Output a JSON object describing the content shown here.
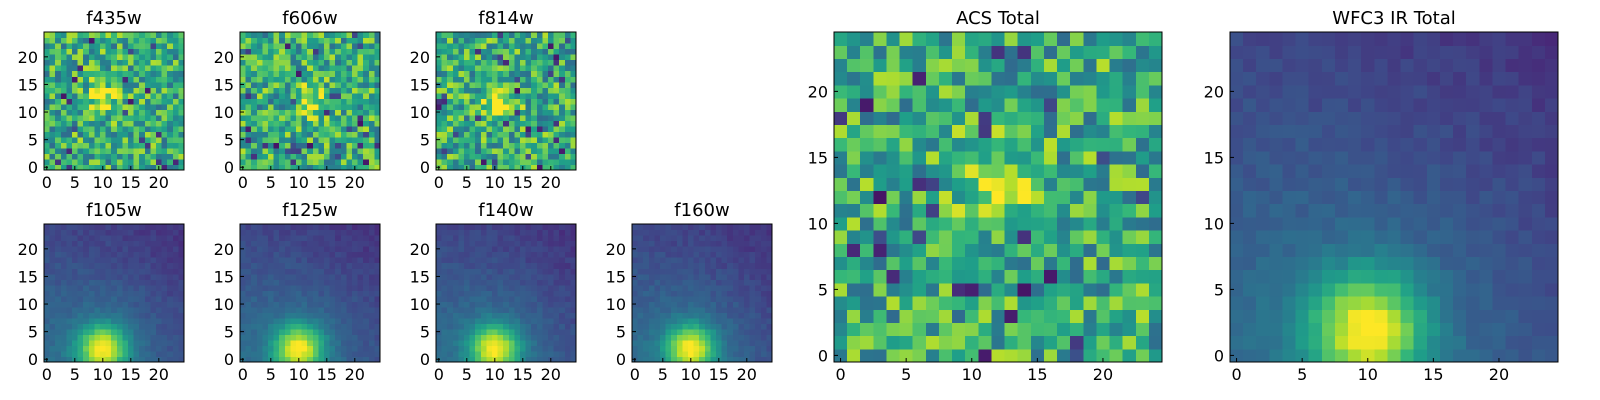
{
  "chart_data": [
    {
      "type": "heatmap",
      "title": "f435w",
      "xlim": [
        0,
        24
      ],
      "ylim": [
        0,
        24
      ],
      "xticks": [
        0,
        5,
        10,
        15,
        20
      ],
      "yticks": [
        0,
        5,
        10,
        15,
        20
      ],
      "colormap": "viridis",
      "texture": "noisy",
      "peak": {
        "x": 10,
        "y": 13
      }
    },
    {
      "type": "heatmap",
      "title": "f606w",
      "xlim": [
        0,
        24
      ],
      "ylim": [
        0,
        24
      ],
      "xticks": [
        0,
        5,
        10,
        15,
        20
      ],
      "yticks": [
        0,
        5,
        10,
        15,
        20
      ],
      "colormap": "viridis",
      "texture": "noisy",
      "peak": {
        "x": 12,
        "y": 12
      }
    },
    {
      "type": "heatmap",
      "title": "f814w",
      "xlim": [
        0,
        24
      ],
      "ylim": [
        0,
        24
      ],
      "xticks": [
        0,
        5,
        10,
        15,
        20
      ],
      "yticks": [
        0,
        5,
        10,
        15,
        20
      ],
      "colormap": "viridis",
      "texture": "noisy",
      "peak": {
        "x": 11,
        "y": 12
      }
    },
    {
      "type": "heatmap",
      "title": "f105w",
      "xlim": [
        0,
        24
      ],
      "ylim": [
        0,
        24
      ],
      "xticks": [
        0,
        5,
        10,
        15,
        20
      ],
      "yticks": [
        0,
        5,
        10,
        15,
        20
      ],
      "colormap": "viridis",
      "texture": "smooth",
      "peak": {
        "x": 10,
        "y": 2
      }
    },
    {
      "type": "heatmap",
      "title": "f125w",
      "xlim": [
        0,
        24
      ],
      "ylim": [
        0,
        24
      ],
      "xticks": [
        0,
        5,
        10,
        15,
        20
      ],
      "yticks": [
        0,
        5,
        10,
        15,
        20
      ],
      "colormap": "viridis",
      "texture": "smooth",
      "peak": {
        "x": 10,
        "y": 2
      }
    },
    {
      "type": "heatmap",
      "title": "f140w",
      "xlim": [
        0,
        24
      ],
      "ylim": [
        0,
        24
      ],
      "xticks": [
        0,
        5,
        10,
        15,
        20
      ],
      "yticks": [
        0,
        5,
        10,
        15,
        20
      ],
      "colormap": "viridis",
      "texture": "smooth",
      "peak": {
        "x": 10,
        "y": 2
      }
    },
    {
      "type": "heatmap",
      "title": "f160w",
      "xlim": [
        0,
        24
      ],
      "ylim": [
        0,
        24
      ],
      "xticks": [
        0,
        5,
        10,
        15,
        20
      ],
      "yticks": [
        0,
        5,
        10,
        15,
        20
      ],
      "colormap": "viridis",
      "texture": "smooth",
      "peak": {
        "x": 10,
        "y": 2
      }
    },
    {
      "type": "heatmap",
      "title": "ACS Total",
      "xlim": [
        0,
        24
      ],
      "ylim": [
        0,
        24
      ],
      "xticks": [
        0,
        5,
        10,
        15,
        20
      ],
      "yticks": [
        0,
        5,
        10,
        15,
        20
      ],
      "colormap": "viridis",
      "texture": "noisy",
      "peak": {
        "x": 12,
        "y": 13
      }
    },
    {
      "type": "heatmap",
      "title": "WFC3 IR Total",
      "xlim": [
        0,
        24
      ],
      "ylim": [
        0,
        24
      ],
      "xticks": [
        0,
        5,
        10,
        15,
        20
      ],
      "yticks": [
        0,
        5,
        10,
        15,
        20
      ],
      "colormap": "viridis",
      "texture": "smooth",
      "peak": {
        "x": 10,
        "y": 2
      }
    }
  ]
}
